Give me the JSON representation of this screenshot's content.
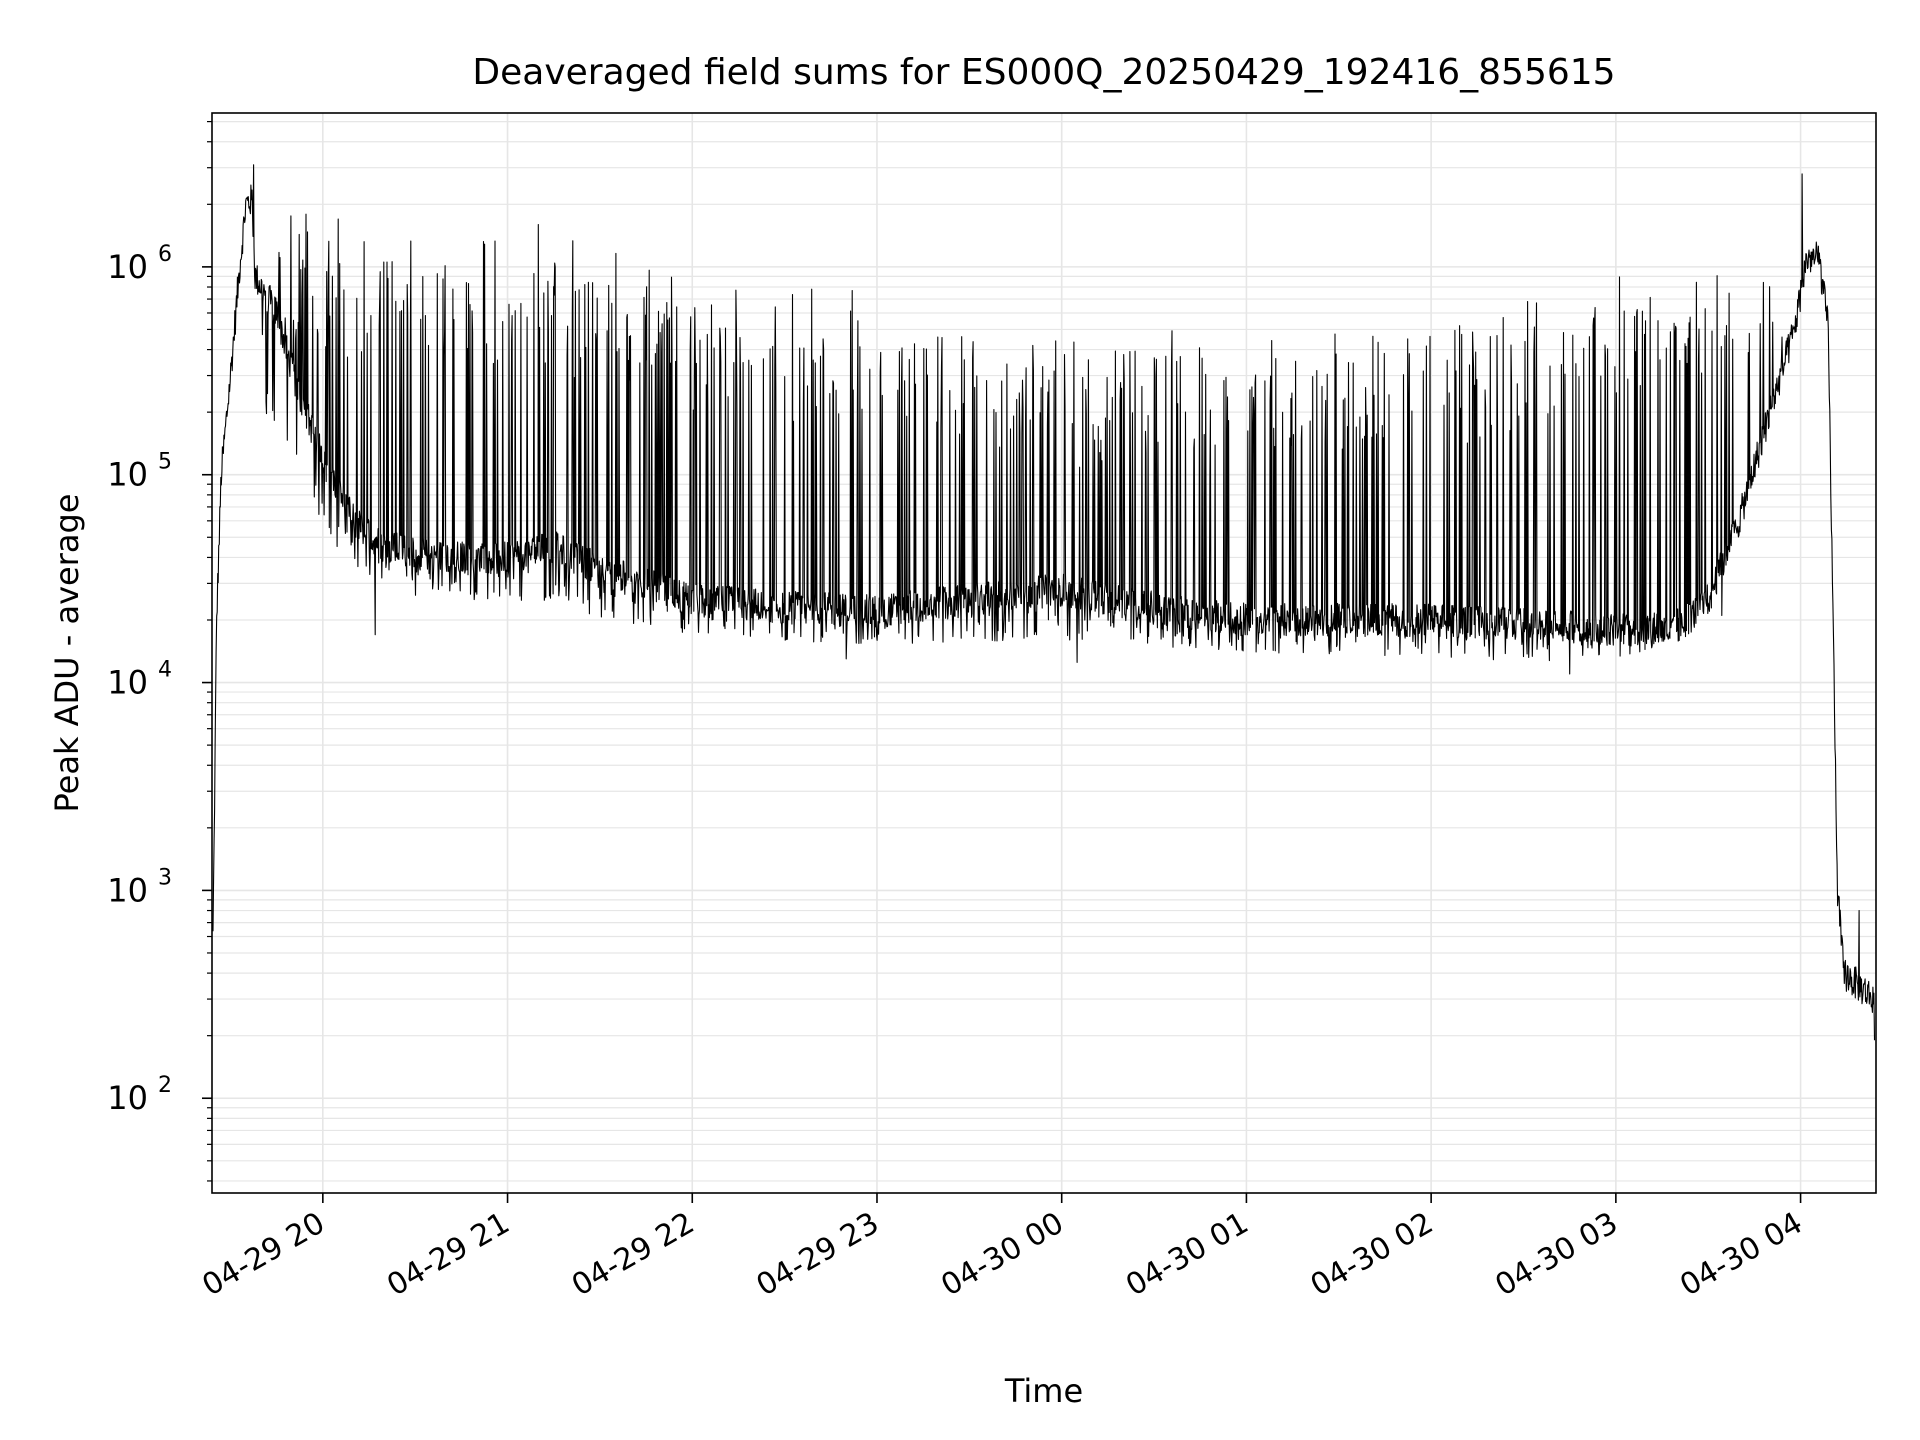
{
  "chart_data": {
    "type": "line",
    "title": "Deaveraged field sums for ES000Q_20250429_192416_855615",
    "xlabel": "Time",
    "ylabel": "Peak ADU - average",
    "yscale": "log",
    "ylim": [
      35,
      5500000
    ],
    "xlim": [
      "2025-04-29 19:24:00",
      "2025-04-30 04:24:30"
    ],
    "grid": true,
    "line_color": "#000000",
    "grid_color": "#e6e6e6",
    "x_ticks": [
      {
        "label": "04-29 20",
        "time": "2025-04-29 20:00"
      },
      {
        "label": "04-29 21",
        "time": "2025-04-29 21:00"
      },
      {
        "label": "04-29 22",
        "time": "2025-04-29 22:00"
      },
      {
        "label": "04-29 23",
        "time": "2025-04-29 23:00"
      },
      {
        "label": "04-30 00",
        "time": "2025-04-30 00:00"
      },
      {
        "label": "04-30 01",
        "time": "2025-04-30 01:00"
      },
      {
        "label": "04-30 02",
        "time": "2025-04-30 02:00"
      },
      {
        "label": "04-30 03",
        "time": "2025-04-30 03:00"
      },
      {
        "label": "04-30 04",
        "time": "2025-04-30 04:00"
      }
    ],
    "y_ticks": [
      {
        "base": "10",
        "exp": "2",
        "value": 100
      },
      {
        "base": "10",
        "exp": "3",
        "value": 1000
      },
      {
        "base": "10",
        "exp": "4",
        "value": 10000
      },
      {
        "base": "10",
        "exp": "5",
        "value": 100000
      },
      {
        "base": "10",
        "exp": "6",
        "value": 1000000
      }
    ],
    "series": [
      {
        "baseline": [
          {
            "t": "2025-04-29 19:24:20",
            "v": 600
          },
          {
            "t": "2025-04-29 19:25:30",
            "v": 20000
          },
          {
            "t": "2025-04-29 19:27:00",
            "v": 100000
          },
          {
            "t": "2025-04-29 19:30:00",
            "v": 300000
          },
          {
            "t": "2025-04-29 19:33:00",
            "v": 1000000
          },
          {
            "t": "2025-04-29 19:35:00",
            "v": 2000000
          },
          {
            "t": "2025-04-29 19:37:00",
            "v": 2100000
          },
          {
            "t": "2025-04-29 19:38:00",
            "v": 900000
          },
          {
            "t": "2025-04-29 19:45:00",
            "v": 600000
          },
          {
            "t": "2025-04-29 19:52:00",
            "v": 250000
          },
          {
            "t": "2025-04-29 20:00:00",
            "v": 120000
          },
          {
            "t": "2025-04-29 20:10:00",
            "v": 60000
          },
          {
            "t": "2025-04-29 20:20:00",
            "v": 45000
          },
          {
            "t": "2025-04-29 20:40:00",
            "v": 40000
          },
          {
            "t": "2025-04-29 21:00:00",
            "v": 40000
          },
          {
            "t": "2025-04-29 21:15:00",
            "v": 45000
          },
          {
            "t": "2025-04-29 21:30:00",
            "v": 35000
          },
          {
            "t": "2025-04-29 22:00:00",
            "v": 25000
          },
          {
            "t": "2025-04-29 22:30:00",
            "v": 23000
          },
          {
            "t": "2025-04-29 23:00:00",
            "v": 22000
          },
          {
            "t": "2025-04-29 23:30:00",
            "v": 25000
          },
          {
            "t": "2025-04-30 00:00:00",
            "v": 28000
          },
          {
            "t": "2025-04-30 00:30:00",
            "v": 23000
          },
          {
            "t": "2025-04-30 01:00:00",
            "v": 20000
          },
          {
            "t": "2025-04-30 01:30:00",
            "v": 20000
          },
          {
            "t": "2025-04-30 02:00:00",
            "v": 20000
          },
          {
            "t": "2025-04-30 02:30:00",
            "v": 19000
          },
          {
            "t": "2025-04-30 03:00:00",
            "v": 18000
          },
          {
            "t": "2025-04-30 03:20:00",
            "v": 18000
          },
          {
            "t": "2025-04-30 03:30:00",
            "v": 25000
          },
          {
            "t": "2025-04-30 03:40:00",
            "v": 60000
          },
          {
            "t": "2025-04-30 03:50:00",
            "v": 200000
          },
          {
            "t": "2025-04-30 03:58:00",
            "v": 500000
          },
          {
            "t": "2025-04-30 04:02:00",
            "v": 1100000
          },
          {
            "t": "2025-04-30 04:06:00",
            "v": 1100000
          },
          {
            "t": "2025-04-30 04:09:00",
            "v": 500000
          },
          {
            "t": "2025-04-30 04:12:00",
            "v": 1000
          },
          {
            "t": "2025-04-30 04:14:00",
            "v": 400
          },
          {
            "t": "2025-04-30 04:24:00",
            "v": 300
          }
        ],
        "spike_envelope": [
          {
            "t": "2025-04-29 19:38:00",
            "v": 1500000
          },
          {
            "t": "2025-04-29 20:00:00",
            "v": 1500000
          },
          {
            "t": "2025-04-29 20:30:00",
            "v": 1100000
          },
          {
            "t": "2025-04-29 21:00:00",
            "v": 1200000
          },
          {
            "t": "2025-04-29 21:30:00",
            "v": 1000000
          },
          {
            "t": "2025-04-29 22:00:00",
            "v": 800000
          },
          {
            "t": "2025-04-29 23:00:00",
            "v": 600000
          },
          {
            "t": "2025-04-30 00:00:00",
            "v": 400000
          },
          {
            "t": "2025-04-30 01:00:00",
            "v": 400000
          },
          {
            "t": "2025-04-30 02:00:00",
            "v": 500000
          },
          {
            "t": "2025-04-30 03:00:00",
            "v": 800000
          },
          {
            "t": "2025-04-30 03:30:00",
            "v": 1000000
          },
          {
            "t": "2025-04-30 03:55:00",
            "v": 1200000
          }
        ],
        "dip_envelope": [
          {
            "t": "2025-04-29 19:40:00",
            "v": 200000
          },
          {
            "t": "2025-04-29 20:05:00",
            "v": 40000
          },
          {
            "t": "2025-04-29 20:30:00",
            "v": 25000
          },
          {
            "t": "2025-04-29 21:00:00",
            "v": 25000
          },
          {
            "t": "2025-04-29 22:00:00",
            "v": 17000
          },
          {
            "t": "2025-04-29 23:00:00",
            "v": 15000
          },
          {
            "t": "2025-04-30 00:00:00",
            "v": 16000
          },
          {
            "t": "2025-04-30 01:00:00",
            "v": 14000
          },
          {
            "t": "2025-04-30 02:00:00",
            "v": 13000
          },
          {
            "t": "2025-04-30 03:00:00",
            "v": 12500
          },
          {
            "t": "2025-04-30 03:35:00",
            "v": 20000
          }
        ],
        "peaks": [
          {
            "t": "2025-04-29 19:37:30",
            "v": 3100000
          },
          {
            "t": "2025-04-30 04:00:30",
            "v": 2800000
          },
          {
            "t": "2025-04-30 04:19:00",
            "v": 800
          },
          {
            "t": "2025-04-29 20:05:00",
            "v": 1700000
          },
          {
            "t": "2025-04-29 21:10:00",
            "v": 1600000
          }
        ],
        "lows": [
          {
            "t": "2025-04-29 20:17:00",
            "v": 17000
          },
          {
            "t": "2025-04-29 22:50:00",
            "v": 13000
          },
          {
            "t": "2025-04-30 00:05:00",
            "v": 12500
          },
          {
            "t": "2025-04-30 02:45:00",
            "v": 11000
          },
          {
            "t": "2025-04-30 04:24:00",
            "v": 190
          }
        ]
      }
    ]
  }
}
